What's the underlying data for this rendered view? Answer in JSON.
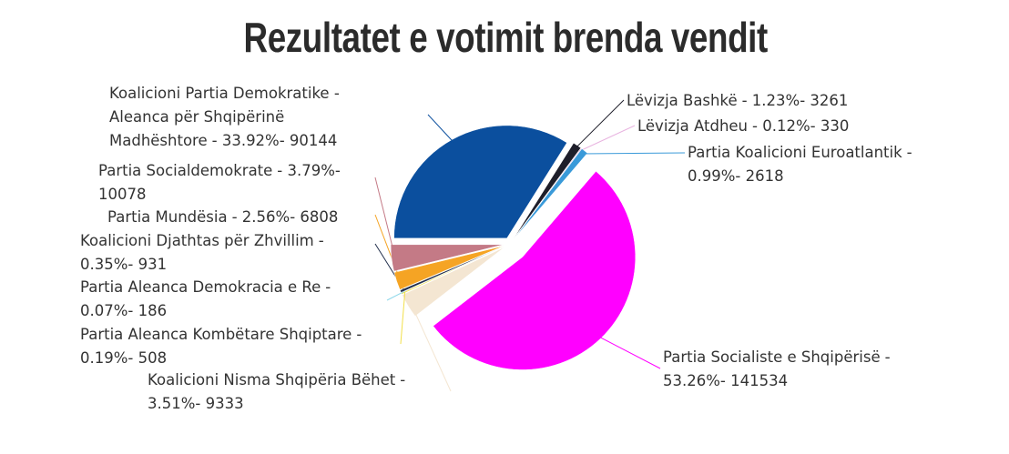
{
  "chart_data": {
    "type": "pie",
    "title": "Rezultatet e votimit brenda vendit",
    "categories": [
      "Koalicioni Partia Demokratike - Aleanca për Shqipërinë Madhështore",
      "Lëvizja Bashkë",
      "Lëvizja Atdheu",
      "Partia Koalicioni Euroatlantik",
      "Partia Socialiste e Shqipërisë",
      "Koalicioni Nisma Shqipëria Bëhet",
      "Partia Aleanca Kombëtare Shqiptare",
      "Partia Aleanca Demokracia e Re",
      "Koalicioni Djathtas për Zhvillim",
      "Partia Mundësia",
      "Partia Socialdemokrate"
    ],
    "values": [
      33.92,
      1.23,
      0.12,
      0.99,
      53.26,
      3.51,
      0.19,
      0.07,
      0.35,
      2.56,
      3.79
    ],
    "value_labels": [
      "- 33.92%- 90144",
      "- 1.23%- 3261",
      "- 0.12%- 330",
      "- 0.99%- 2618",
      "- 53.26%- 141534",
      "- 3.51%- 9333",
      "- 0.19%- 508",
      "- 0.07%- 186",
      "- 0.35%- 931",
      "- 2.56%- 6808",
      "- 3.79%- 10078"
    ],
    "colors": [
      "#0b4f9e",
      "#1e1e2a",
      "#e8b4e0",
      "#3a9ad9",
      "#ff00ff",
      "#f4e6d2",
      "#f2e04a",
      "#8ed8ea",
      "#23304d",
      "#f5a424",
      "#c47a86"
    ]
  }
}
